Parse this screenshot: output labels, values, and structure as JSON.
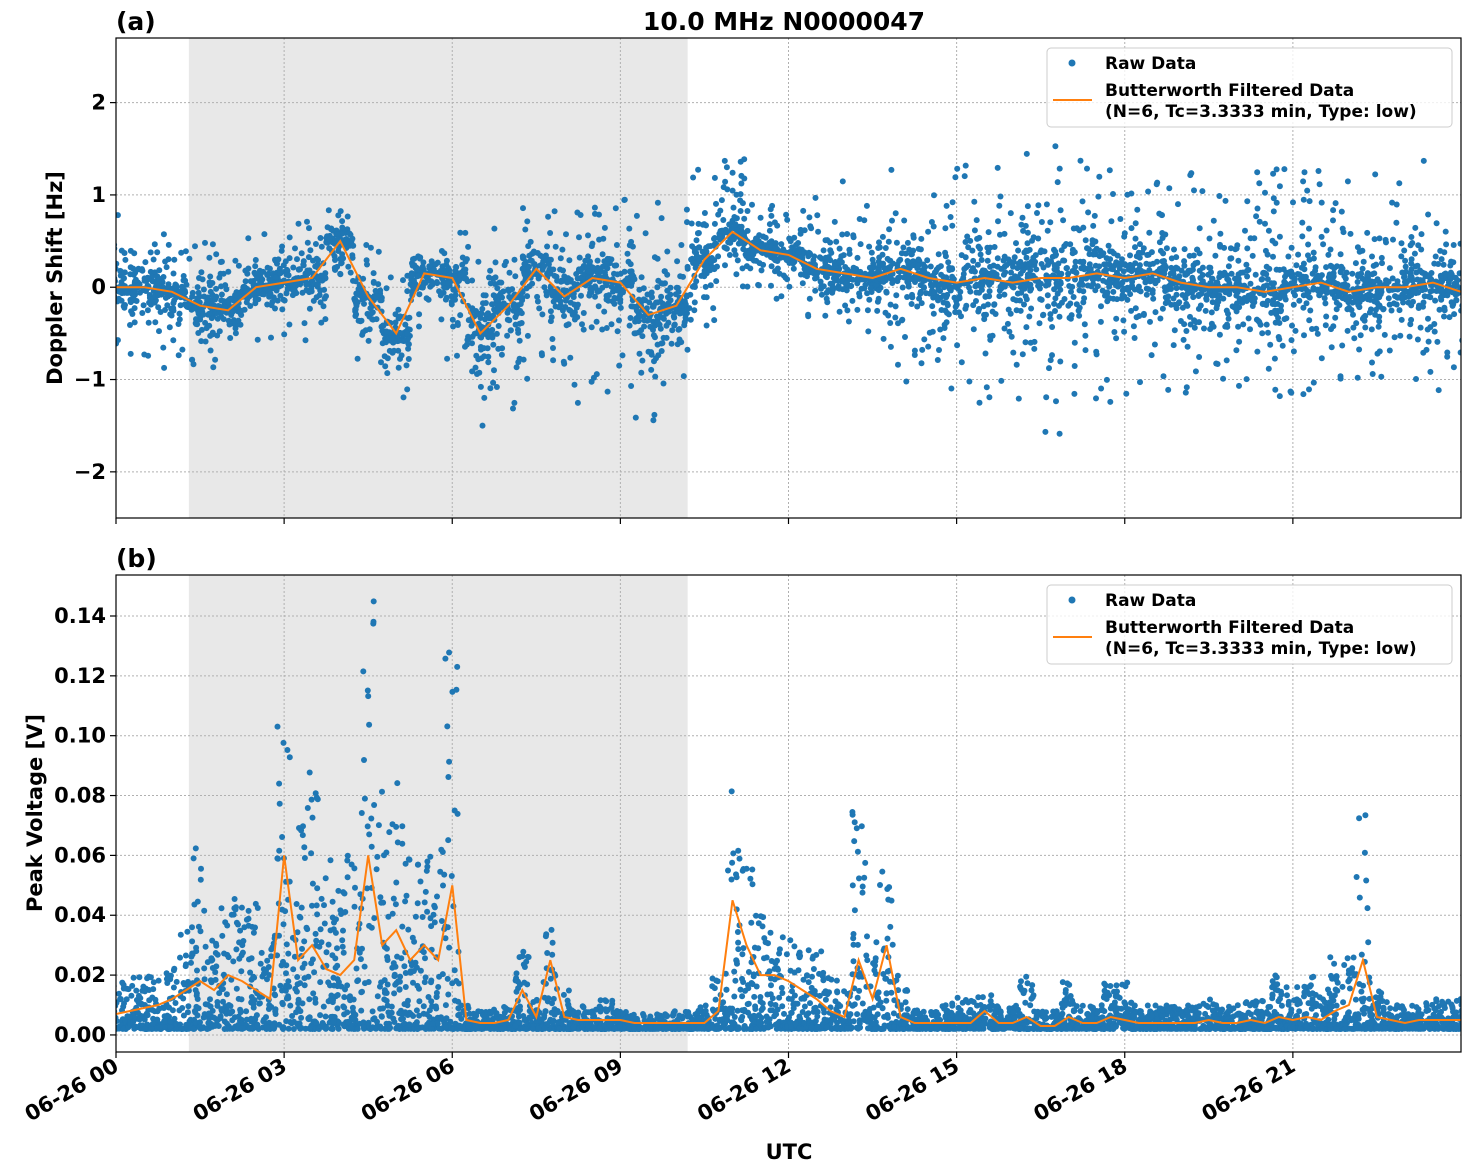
{
  "chart_data": [
    {
      "type": "scatter",
      "panel_label": "(a)",
      "title": "10.0 MHz N0000047",
      "xlabel": "",
      "ylabel": "Doppler Shift [Hz]",
      "x_unit": "hours UTC on 06-26",
      "xlim": [
        0,
        24
      ],
      "ylim": [
        -2.5,
        2.7
      ],
      "yticks": [
        "−2",
        "−1",
        "0",
        "1",
        "2"
      ],
      "ytick_values": [
        -2,
        -1,
        0,
        1,
        2
      ],
      "grid": true,
      "legend_placement": "top-right",
      "shaded_interval_hours": [
        1.3,
        10.2
      ],
      "x": [
        0,
        0.5,
        1,
        1.5,
        2,
        2.5,
        3,
        3.5,
        4,
        4.5,
        5,
        5.5,
        6,
        6.5,
        7,
        7.5,
        8,
        8.5,
        9,
        9.5,
        10,
        10.5,
        11,
        11.5,
        12,
        12.5,
        13,
        13.5,
        14,
        14.5,
        15,
        15.5,
        16,
        16.5,
        17,
        17.5,
        18,
        18.5,
        19,
        19.5,
        20,
        20.5,
        21,
        21.5,
        22,
        22.5,
        23,
        23.5,
        24
      ],
      "series": [
        {
          "name": "Butterworth Filtered Data\n(N=6, Tc=3.3333 min, Type: low)",
          "kind": "line",
          "color": "#ff7f0e",
          "values": [
            0,
            0,
            -0.05,
            -0.2,
            -0.25,
            0,
            0.05,
            0.1,
            0.5,
            -0.1,
            -0.5,
            0.15,
            0.1,
            -0.5,
            -0.2,
            0.2,
            -0.1,
            0.1,
            0.05,
            -0.3,
            -0.2,
            0.3,
            0.6,
            0.4,
            0.35,
            0.2,
            0.15,
            0.1,
            0.2,
            0.1,
            0.05,
            0.1,
            0.05,
            0.1,
            0.1,
            0.15,
            0.1,
            0.15,
            0.05,
            0,
            0,
            -0.05,
            0,
            0.05,
            -0.05,
            0,
            0,
            0.05,
            -0.05
          ]
        },
        {
          "name": "Raw Data",
          "kind": "points",
          "color": "#1f77b4",
          "range_low": [
            -0.9,
            -0.8,
            -0.9,
            -0.9,
            -0.8,
            -0.6,
            -0.6,
            -0.6,
            -0.2,
            -1.0,
            -1.2,
            -0.5,
            -0.8,
            -1.7,
            -1.4,
            -1.0,
            -1.3,
            -1.1,
            -1.2,
            -1.5,
            -1.4,
            -0.6,
            -0.1,
            0.0,
            -0.2,
            -0.5,
            -0.6,
            -0.7,
            -1.1,
            -1.2,
            -1.3,
            -1.3,
            -1.4,
            -1.7,
            -1.6,
            -1.3,
            -1.3,
            -1.1,
            -1.2,
            -1.3,
            -1.3,
            -1.3,
            -1.2,
            -1.3,
            -1.3,
            -1.3,
            -1.2,
            -1.2,
            -1.2
          ],
          "range_high": [
            0.9,
            0.8,
            0.7,
            0.5,
            0.4,
            0.6,
            0.6,
            0.8,
            1.0,
            0.5,
            0.2,
            0.5,
            0.7,
            0.9,
            0.8,
            0.9,
            1.0,
            1.1,
            1.3,
            1.0,
            0.9,
            1.4,
            1.4,
            0.9,
            0.8,
            1.0,
            1.2,
            1.0,
            1.3,
            1.4,
            1.4,
            1.5,
            1.5,
            1.7,
            1.6,
            1.5,
            1.4,
            1.5,
            1.3,
            1.2,
            1.2,
            1.3,
            1.3,
            1.3,
            1.2,
            1.3,
            1.3,
            1.4,
            1.3
          ]
        }
      ]
    },
    {
      "type": "scatter",
      "panel_label": "(b)",
      "xlabel": "UTC",
      "ylabel": "Peak Voltage [V]",
      "x_unit": "hours UTC on 06-26",
      "xlim": [
        0,
        24
      ],
      "ylim": [
        -0.0057,
        0.1537
      ],
      "yticks": [
        "0.00",
        "0.02",
        "0.04",
        "0.06",
        "0.08",
        "0.10",
        "0.12",
        "0.14"
      ],
      "ytick_values": [
        0,
        0.02,
        0.04,
        0.06,
        0.08,
        0.1,
        0.12,
        0.14
      ],
      "xticks": [
        "06-26 00",
        "06-26 03",
        "06-26 06",
        "06-26 09",
        "06-26 12",
        "06-26 15",
        "06-26 18",
        "06-26 21"
      ],
      "xtick_values": [
        0,
        3,
        6,
        9,
        12,
        15,
        18,
        21
      ],
      "grid": true,
      "legend_placement": "top-right",
      "shaded_interval_hours": [
        1.3,
        10.2
      ],
      "x": [
        0,
        0.25,
        0.5,
        0.75,
        1,
        1.25,
        1.5,
        1.75,
        2,
        2.25,
        2.5,
        2.75,
        3,
        3.25,
        3.5,
        3.75,
        4,
        4.25,
        4.5,
        4.75,
        5,
        5.25,
        5.5,
        5.75,
        6,
        6.25,
        6.5,
        6.75,
        7,
        7.25,
        7.5,
        7.75,
        8,
        8.25,
        8.5,
        8.75,
        9,
        9.25,
        9.5,
        9.75,
        10,
        10.25,
        10.5,
        10.75,
        11,
        11.25,
        11.5,
        11.75,
        12,
        12.25,
        12.5,
        12.75,
        13,
        13.25,
        13.5,
        13.75,
        14,
        14.25,
        14.5,
        14.75,
        15,
        15.25,
        15.5,
        15.75,
        16,
        16.25,
        16.5,
        16.75,
        17,
        17.25,
        17.5,
        17.75,
        18,
        18.25,
        18.5,
        18.75,
        19,
        19.25,
        19.5,
        19.75,
        20,
        20.25,
        20.5,
        20.75,
        21,
        21.25,
        21.5,
        21.75,
        22,
        22.25,
        22.5,
        22.75,
        23,
        23.25,
        23.5,
        23.75,
        24
      ],
      "series": [
        {
          "name": "Butterworth Filtered Data\n(N=6, Tc=3.3333 min, Type: low)",
          "kind": "line",
          "color": "#ff7f0e",
          "values": [
            0.007,
            0.008,
            0.009,
            0.01,
            0.012,
            0.015,
            0.018,
            0.015,
            0.02,
            0.018,
            0.015,
            0.012,
            0.06,
            0.025,
            0.03,
            0.022,
            0.02,
            0.025,
            0.06,
            0.03,
            0.035,
            0.025,
            0.03,
            0.025,
            0.05,
            0.005,
            0.004,
            0.004,
            0.005,
            0.015,
            0.006,
            0.025,
            0.006,
            0.005,
            0.005,
            0.005,
            0.005,
            0.004,
            0.004,
            0.004,
            0.004,
            0.004,
            0.004,
            0.008,
            0.045,
            0.03,
            0.02,
            0.02,
            0.018,
            0.015,
            0.012,
            0.008,
            0.006,
            0.025,
            0.012,
            0.03,
            0.006,
            0.004,
            0.004,
            0.004,
            0.004,
            0.004,
            0.008,
            0.004,
            0.004,
            0.006,
            0.003,
            0.003,
            0.006,
            0.004,
            0.004,
            0.006,
            0.005,
            0.004,
            0.004,
            0.004,
            0.004,
            0.004,
            0.005,
            0.004,
            0.004,
            0.005,
            0.004,
            0.006,
            0.005,
            0.006,
            0.005,
            0.008,
            0.01,
            0.025,
            0.006,
            0.005,
            0.004,
            0.005,
            0.005,
            0.005,
            0.005
          ]
        },
        {
          "name": "Raw Data",
          "kind": "points",
          "color": "#1f77b4",
          "range_low_all": 0.002,
          "range_high": [
            0.018,
            0.02,
            0.02,
            0.022,
            0.025,
            0.04,
            0.063,
            0.04,
            0.047,
            0.045,
            0.045,
            0.035,
            0.115,
            0.07,
            0.09,
            0.06,
            0.05,
            0.06,
            0.146,
            0.085,
            0.088,
            0.06,
            0.06,
            0.065,
            0.133,
            0.01,
            0.008,
            0.009,
            0.01,
            0.028,
            0.012,
            0.038,
            0.015,
            0.01,
            0.009,
            0.012,
            0.008,
            0.007,
            0.007,
            0.007,
            0.008,
            0.008,
            0.01,
            0.02,
            0.087,
            0.06,
            0.04,
            0.035,
            0.038,
            0.03,
            0.028,
            0.02,
            0.015,
            0.08,
            0.035,
            0.062,
            0.02,
            0.01,
            0.008,
            0.01,
            0.013,
            0.012,
            0.016,
            0.01,
            0.01,
            0.02,
            0.008,
            0.008,
            0.018,
            0.01,
            0.01,
            0.02,
            0.018,
            0.01,
            0.01,
            0.01,
            0.01,
            0.01,
            0.012,
            0.01,
            0.01,
            0.012,
            0.012,
            0.02,
            0.016,
            0.02,
            0.014,
            0.026,
            0.03,
            0.076,
            0.015,
            0.012,
            0.01,
            0.01,
            0.012,
            0.012,
            0.012
          ]
        }
      ]
    }
  ],
  "legend": {
    "raw_label": "Raw Data",
    "filtered_label_line1": "Butterworth Filtered Data",
    "filtered_label_line2": "(N=6, Tc=3.3333 min, Type: low)"
  },
  "colors": {
    "raw": "#1f77b4",
    "filtered": "#ff7f0e",
    "shade": "#e8e8e8",
    "grid": "#b0b0b0"
  }
}
